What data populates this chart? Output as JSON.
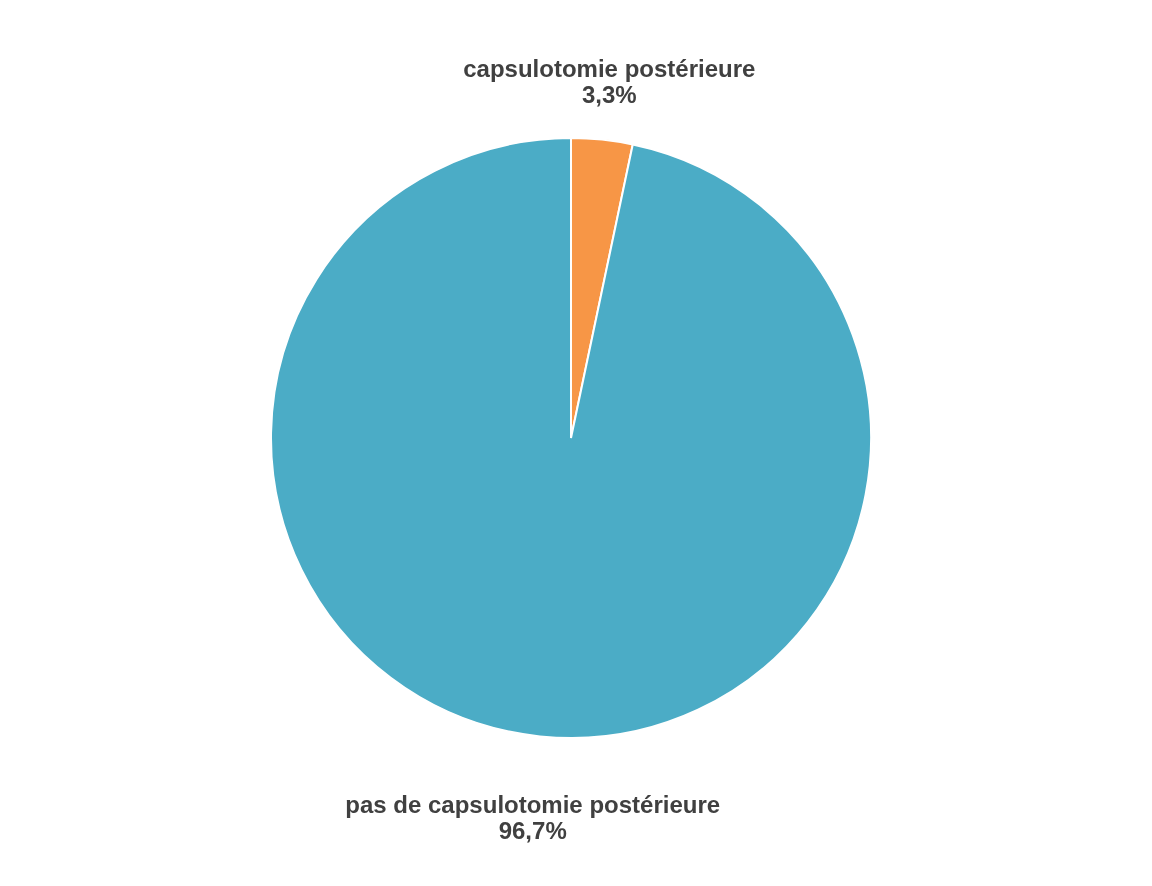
{
  "chart_data": {
    "type": "pie",
    "categories": [
      "capsulotomie postérieure",
      "pas de capsulotomie postérieure"
    ],
    "values": [
      3.3,
      96.7
    ],
    "colors": [
      "#f79646",
      "#4bacc6"
    ],
    "value_labels": [
      "3,3%",
      "96,7%"
    ],
    "legend": false
  }
}
